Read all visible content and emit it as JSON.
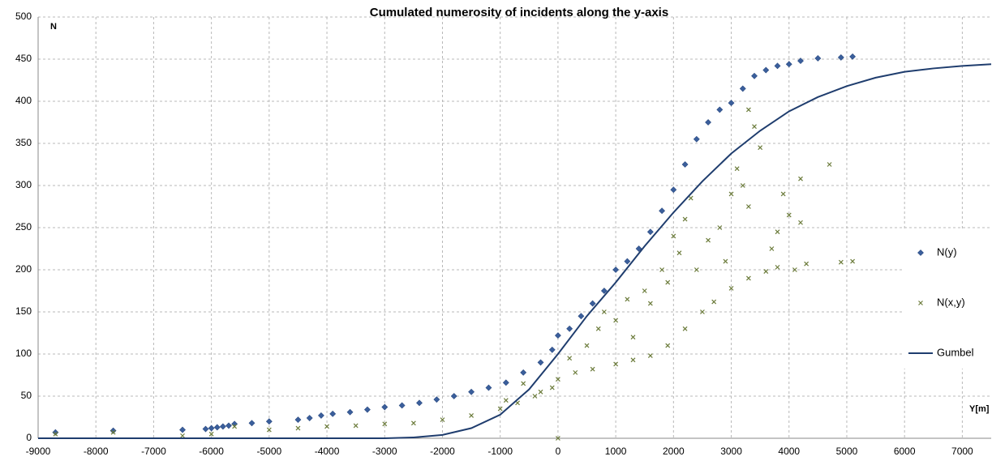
{
  "chart_data": {
    "type": "scatter",
    "title": "Cumulated numerosity of incidents along the y-axis",
    "x_label": "Y[m]",
    "y_label": "N",
    "xlim": [
      -9000,
      7500
    ],
    "xticks": [
      -9000,
      -8000,
      -7000,
      -6000,
      -5000,
      -4000,
      -3000,
      -2000,
      -1000,
      0,
      1000,
      2000,
      3000,
      4000,
      5000,
      6000,
      7000
    ],
    "ylim": [
      0,
      500
    ],
    "yticks": [
      0,
      50,
      100,
      150,
      200,
      250,
      300,
      350,
      400,
      450,
      500
    ],
    "grid": true,
    "legend": "right",
    "series": [
      {
        "name": "N(y)",
        "type": "scatter",
        "marker": "diamond",
        "color": "#3b5f9c",
        "x": [
          -8700,
          -7700,
          -6500,
          -6100,
          -6000,
          -5900,
          -5800,
          -5700,
          -5600,
          -5300,
          -5000,
          -4500,
          -4300,
          -4100,
          -3900,
          -3600,
          -3300,
          -3000,
          -2700,
          -2400,
          -2100,
          -1800,
          -1500,
          -1200,
          -900,
          -600,
          -300,
          -100,
          0,
          200,
          400,
          600,
          800,
          1000,
          1200,
          1400,
          1600,
          1800,
          2000,
          2200,
          2400,
          2600,
          2800,
          3000,
          3200,
          3400,
          3600,
          3800,
          4000,
          4200,
          4500,
          4900,
          5100
        ],
        "values": [
          7,
          9,
          10,
          11,
          12,
          13,
          14,
          15,
          17,
          18,
          20,
          22,
          24,
          27,
          29,
          31,
          34,
          37,
          39,
          42,
          46,
          50,
          55,
          60,
          66,
          78,
          90,
          105,
          122,
          130,
          145,
          160,
          175,
          200,
          210,
          225,
          245,
          270,
          295,
          325,
          355,
          375,
          390,
          398,
          415,
          430,
          437,
          442,
          444,
          448,
          451,
          452,
          453
        ]
      },
      {
        "name": "N(x,y)",
        "type": "scatter",
        "marker": "x",
        "color": "#6b7b3a",
        "x": [
          -8700,
          -7700,
          -6500,
          -6000,
          -5600,
          -5000,
          -4500,
          -4000,
          -3500,
          -3000,
          -2500,
          -2000,
          -1500,
          -1000,
          -700,
          -400,
          -100,
          0,
          300,
          600,
          1000,
          1300,
          1600,
          1900,
          2200,
          2500,
          2700,
          3000,
          3300,
          3600,
          3800,
          4300,
          4900,
          5100,
          0,
          -900,
          -600,
          -300,
          200,
          500,
          700,
          800,
          1000,
          1200,
          1300,
          1500,
          1600,
          1800,
          1900,
          2000,
          2100,
          2200,
          2300,
          2400,
          2600,
          2800,
          2900,
          3000,
          3100,
          3200,
          3300,
          3300,
          3400,
          3500,
          3700,
          3800,
          3900,
          4000,
          4100,
          4200,
          4200,
          4700
        ],
        "values": [
          5,
          7,
          3,
          5,
          14,
          10,
          12,
          14,
          15,
          17,
          18,
          22,
          27,
          35,
          42,
          50,
          60,
          70,
          78,
          82,
          88,
          93,
          98,
          110,
          130,
          150,
          162,
          178,
          190,
          198,
          203,
          207,
          209,
          210,
          0,
          45,
          65,
          55,
          95,
          110,
          130,
          150,
          140,
          165,
          120,
          175,
          160,
          200,
          185,
          240,
          220,
          260,
          285,
          200,
          235,
          250,
          210,
          290,
          320,
          300,
          390,
          275,
          370,
          345,
          225,
          245,
          290,
          265,
          200,
          308,
          256,
          325
        ]
      },
      {
        "name": "Gumbel",
        "type": "line",
        "color": "#1f3d6e",
        "x": [
          -9000,
          -3000,
          -2500,
          -2000,
          -1500,
          -1000,
          -500,
          0,
          500,
          1000,
          1500,
          2000,
          2500,
          3000,
          3500,
          4000,
          4500,
          5000,
          5500,
          6000,
          6500,
          7000,
          7500
        ],
        "values": [
          0,
          0,
          1,
          4,
          12,
          28,
          58,
          100,
          145,
          185,
          228,
          268,
          305,
          338,
          365,
          388,
          405,
          418,
          428,
          435,
          439,
          442,
          444
        ]
      }
    ]
  }
}
